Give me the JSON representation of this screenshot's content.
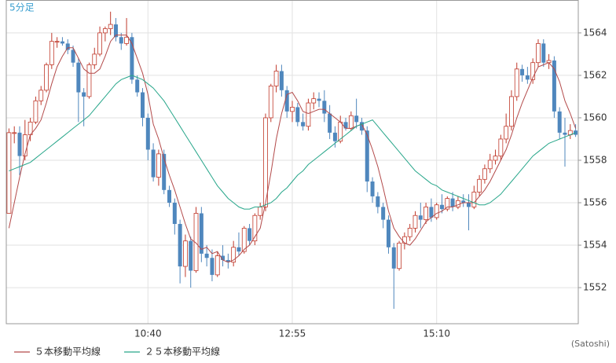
{
  "chart_data": {
    "type": "candlestick",
    "title": "5分足",
    "categories": [
      null,
      null,
      null,
      null,
      null,
      null,
      null,
      null,
      null,
      null,
      null,
      null,
      null,
      null,
      null,
      null,
      null,
      null,
      null,
      null,
      null,
      null,
      null,
      null,
      null,
      null,
      "10:40",
      null,
      null,
      null,
      null,
      null,
      null,
      null,
      null,
      null,
      null,
      null,
      null,
      null,
      null,
      null,
      null,
      null,
      null,
      null,
      null,
      null,
      null,
      null,
      null,
      null,
      null,
      "12:55",
      null,
      null,
      null,
      null,
      null,
      null,
      null,
      null,
      null,
      null,
      null,
      null,
      null,
      null,
      null,
      null,
      null,
      null,
      null,
      null,
      null,
      null,
      null,
      null,
      null,
      null,
      "15:10",
      null,
      null,
      null,
      null,
      null,
      null,
      null,
      null,
      null,
      null,
      null,
      null,
      null,
      null,
      null,
      null,
      null,
      null,
      null,
      null,
      null,
      null,
      null,
      null,
      null,
      null
    ],
    "open": [
      1555.5,
      1559.3,
      1559.3,
      1558.2,
      1559.2,
      1559.8,
      1560.8,
      1561.3,
      1562.5,
      1563.6,
      1563.6,
      1563.5,
      1563.2,
      1562.6,
      1561.2,
      1561.0,
      1562.5,
      1563.0,
      1564.0,
      1564.2,
      1564.4,
      1563.8,
      1563.5,
      1563.8,
      1561.8,
      1561.2,
      1560.0,
      1558.5,
      1557.2,
      1558.3,
      1556.6,
      1556.0,
      1555.0,
      1553.0,
      1554.2,
      1552.8,
      1555.5,
      1553.6,
      1553.4,
      1552.6,
      1553.5,
      1553.3,
      1553.2,
      1553.9,
      1553.7,
      1554.8,
      1554.2,
      1555.4,
      1555.8,
      1560.0,
      1561.5,
      1562.2,
      1561.3,
      1560.3,
      1560.5,
      1559.8,
      1559.6,
      1560.7,
      1560.9,
      1560.8,
      1560.2,
      1559.3,
      1558.9,
      1559.8,
      1559.5,
      1560.1,
      1559.8,
      1559.4,
      1557.0,
      1556.3,
      1555.8,
      1555.2,
      1553.9,
      1552.9,
      1554.1,
      1554.4,
      1554.8,
      1555.4,
      1555.2,
      1555.8,
      1555.3,
      1555.9,
      1555.7,
      1556.2,
      1555.8,
      1556.1,
      1556.0,
      1555.8,
      1556.5,
      1557.1,
      1557.6,
      1558.0,
      1558.2,
      1559.0,
      1559.6,
      1561.0,
      1562.3,
      1562.0,
      1561.8,
      1562.6,
      1563.5,
      1562.6,
      1562.7,
      1560.3,
      1559.3,
      1559.2,
      1559.4
    ],
    "high": [
      1559.5,
      1559.6,
      1559.6,
      1559.9,
      1560.0,
      1561.0,
      1561.5,
      1562.6,
      1564.0,
      1563.8,
      1563.8,
      1563.7,
      1563.4,
      1562.8,
      1561.4,
      1562.6,
      1563.3,
      1564.3,
      1564.3,
      1565.0,
      1564.7,
      1564.0,
      1564.7,
      1564.0,
      1562.0,
      1561.4,
      1560.2,
      1558.8,
      1558.5,
      1558.5,
      1556.8,
      1556.2,
      1555.2,
      1554.5,
      1554.4,
      1555.8,
      1555.8,
      1554.0,
      1553.8,
      1553.7,
      1554.0,
      1553.6,
      1554.2,
      1554.6,
      1554.9,
      1555.0,
      1555.5,
      1556.0,
      1560.2,
      1561.6,
      1562.5,
      1562.5,
      1561.5,
      1560.8,
      1560.7,
      1560.2,
      1560.9,
      1561.2,
      1561.2,
      1561.3,
      1560.6,
      1559.6,
      1560.1,
      1560.0,
      1560.3,
      1560.9,
      1560.0,
      1559.6,
      1557.2,
      1556.5,
      1556.0,
      1555.4,
      1554.1,
      1554.2,
      1554.6,
      1555.0,
      1555.6,
      1556.0,
      1556.0,
      1556.2,
      1556.0,
      1556.4,
      1556.3,
      1556.5,
      1556.3,
      1556.4,
      1556.4,
      1556.8,
      1557.3,
      1557.8,
      1558.3,
      1558.5,
      1559.2,
      1560.2,
      1561.3,
      1562.6,
      1562.5,
      1562.4,
      1562.8,
      1563.7,
      1563.7,
      1563.0,
      1562.9,
      1560.5,
      1560.0,
      1559.7,
      1559.7
    ],
    "low": [
      1555.5,
      1558.8,
      1557.3,
      1558.0,
      1558.9,
      1559.7,
      1560.6,
      1561.2,
      1562.3,
      1563.3,
      1563.4,
      1563.0,
      1562.4,
      1559.8,
      1559.6,
      1560.9,
      1562.3,
      1562.9,
      1563.6,
      1563.9,
      1563.6,
      1563.2,
      1563.4,
      1561.6,
      1561.0,
      1559.6,
      1558.0,
      1557.0,
      1556.8,
      1556.4,
      1555.8,
      1554.5,
      1552.2,
      1552.5,
      1552.0,
      1552.7,
      1553.2,
      1553.0,
      1552.3,
      1552.5,
      1553.0,
      1552.9,
      1553.0,
      1553.5,
      1553.6,
      1554.0,
      1554.0,
      1555.2,
      1555.6,
      1559.8,
      1561.2,
      1561.0,
      1560.0,
      1559.8,
      1559.6,
      1559.4,
      1559.4,
      1560.4,
      1560.5,
      1559.8,
      1559.0,
      1558.6,
      1558.8,
      1559.4,
      1559.4,
      1559.5,
      1559.2,
      1556.5,
      1556.0,
      1555.5,
      1554.8,
      1553.6,
      1551.0,
      1552.8,
      1553.8,
      1554.2,
      1554.6,
      1554.8,
      1555.0,
      1555.1,
      1555.2,
      1555.5,
      1555.6,
      1555.6,
      1555.7,
      1555.8,
      1554.7,
      1555.7,
      1556.3,
      1556.9,
      1557.4,
      1557.8,
      1558.0,
      1558.8,
      1559.4,
      1560.8,
      1561.7,
      1561.6,
      1561.6,
      1562.4,
      1562.4,
      1562.3,
      1560.0,
      1559.0,
      1557.7,
      1559.0,
      1559.1
    ],
    "close": [
      1559.3,
      1559.3,
      1558.2,
      1559.2,
      1559.8,
      1560.8,
      1561.3,
      1562.5,
      1563.6,
      1563.6,
      1563.5,
      1563.2,
      1562.6,
      1561.2,
      1561.0,
      1562.5,
      1563.0,
      1564.0,
      1564.2,
      1564.4,
      1563.8,
      1563.5,
      1563.8,
      1561.8,
      1561.2,
      1560.0,
      1558.5,
      1557.2,
      1558.3,
      1556.6,
      1556.0,
      1555.0,
      1553.0,
      1554.2,
      1552.8,
      1555.5,
      1553.6,
      1553.4,
      1552.6,
      1553.5,
      1553.3,
      1553.2,
      1553.9,
      1553.7,
      1554.8,
      1554.2,
      1555.4,
      1555.8,
      1560.0,
      1561.5,
      1562.2,
      1561.3,
      1560.3,
      1560.5,
      1559.8,
      1559.6,
      1560.7,
      1560.9,
      1560.8,
      1560.2,
      1559.3,
      1558.9,
      1559.8,
      1559.5,
      1560.1,
      1559.8,
      1559.4,
      1557.0,
      1556.3,
      1555.8,
      1555.2,
      1553.9,
      1552.9,
      1554.1,
      1554.4,
      1554.8,
      1555.4,
      1555.2,
      1555.8,
      1555.3,
      1555.9,
      1555.7,
      1556.2,
      1555.8,
      1556.1,
      1556.0,
      1555.8,
      1556.5,
      1557.1,
      1557.6,
      1558.0,
      1558.2,
      1559.0,
      1559.6,
      1561.0,
      1562.3,
      1562.0,
      1561.8,
      1562.6,
      1563.5,
      1562.6,
      1562.7,
      1560.3,
      1559.3,
      1559.2,
      1559.4,
      1559.2
    ],
    "up_color": "#c0392b",
    "down_color": "#4f87bd",
    "series": [
      {
        "name": "５本移動平均線",
        "color": "#b34a4a",
        "values": [
          1554.8,
          1556.0,
          1557.2,
          1558.3,
          1559.2,
          1559.5,
          1559.9,
          1560.7,
          1561.6,
          1562.4,
          1562.9,
          1563.3,
          1563.3,
          1562.8,
          1562.3,
          1562.1,
          1562.1,
          1562.3,
          1562.9,
          1563.6,
          1563.9,
          1563.9,
          1563.9,
          1563.5,
          1562.8,
          1562.1,
          1561.1,
          1559.7,
          1559.0,
          1558.1,
          1557.3,
          1556.6,
          1555.8,
          1555.0,
          1554.3,
          1554.1,
          1553.8,
          1553.9,
          1553.6,
          1553.7,
          1553.3,
          1553.2,
          1553.3,
          1553.5,
          1553.8,
          1554.0,
          1554.4,
          1554.8,
          1556.0,
          1557.4,
          1559.0,
          1560.2,
          1561.1,
          1561.2,
          1560.8,
          1560.3,
          1560.2,
          1560.3,
          1560.4,
          1560.4,
          1560.2,
          1560.0,
          1559.8,
          1559.5,
          1559.5,
          1559.6,
          1559.7,
          1559.2,
          1558.5,
          1557.7,
          1556.7,
          1555.6,
          1554.8,
          1554.4,
          1554.1,
          1554.0,
          1554.3,
          1554.7,
          1555.1,
          1555.3,
          1555.5,
          1555.6,
          1555.8,
          1555.8,
          1555.9,
          1556.0,
          1556.0,
          1556.0,
          1556.3,
          1556.6,
          1557.0,
          1557.5,
          1558.0,
          1558.5,
          1559.2,
          1560.0,
          1560.7,
          1561.3,
          1561.9,
          1562.4,
          1562.5,
          1562.6,
          1562.3,
          1561.7,
          1560.8,
          1560.2,
          1559.5
        ]
      },
      {
        "name": "２５本移動平均線",
        "color": "#27a68a",
        "values": [
          1557.5,
          1557.6,
          1557.7,
          1557.8,
          1557.9,
          1558.1,
          1558.3,
          1558.5,
          1558.7,
          1558.9,
          1559.1,
          1559.3,
          1559.5,
          1559.7,
          1559.9,
          1560.1,
          1560.4,
          1560.7,
          1561.0,
          1561.3,
          1561.6,
          1561.8,
          1561.9,
          1562.0,
          1561.9,
          1561.8,
          1561.6,
          1561.4,
          1561.1,
          1560.8,
          1560.4,
          1560.0,
          1559.6,
          1559.2,
          1558.8,
          1558.4,
          1558.0,
          1557.6,
          1557.2,
          1556.8,
          1556.5,
          1556.2,
          1556.0,
          1555.8,
          1555.7,
          1555.7,
          1555.8,
          1555.8,
          1555.9,
          1556.0,
          1556.2,
          1556.5,
          1556.7,
          1557.0,
          1557.3,
          1557.5,
          1557.8,
          1558.0,
          1558.2,
          1558.4,
          1558.6,
          1558.8,
          1559.0,
          1559.2,
          1559.4,
          1559.6,
          1559.7,
          1559.8,
          1559.9,
          1559.6,
          1559.3,
          1559.0,
          1558.7,
          1558.4,
          1558.1,
          1557.8,
          1557.5,
          1557.3,
          1557.1,
          1556.9,
          1556.8,
          1556.6,
          1556.5,
          1556.4,
          1556.3,
          1556.2,
          1556.1,
          1556.0,
          1555.9,
          1555.9,
          1556.0,
          1556.2,
          1556.4,
          1556.7,
          1557.0,
          1557.3,
          1557.6,
          1557.9,
          1558.2,
          1558.4,
          1558.6,
          1558.8,
          1558.9,
          1559.0,
          1559.1,
          1559.2,
          1559.3
        ]
      }
    ],
    "ylim": [
      1550.3,
      1565.55
    ],
    "yticks": [
      1552,
      1554,
      1556,
      1558,
      1560,
      1562,
      1564
    ],
    "grid": true,
    "credit": "(Satoshi)"
  }
}
